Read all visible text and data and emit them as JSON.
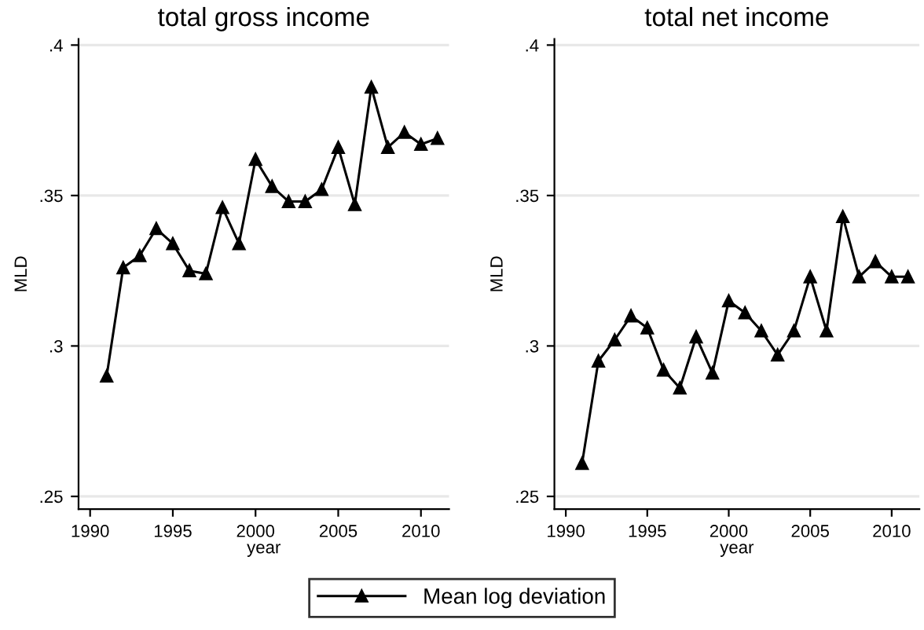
{
  "chart_data": [
    {
      "type": "line",
      "title": "total gross income",
      "xlabel": "year",
      "ylabel": "MLD",
      "x": [
        1991,
        1992,
        1993,
        1994,
        1995,
        1996,
        1997,
        1998,
        1999,
        2000,
        2001,
        2002,
        2003,
        2004,
        2005,
        2006,
        2007,
        2008,
        2009,
        2010,
        2011
      ],
      "series": [
        {
          "color": "#000000",
          "values": [
            0.29,
            0.326,
            0.33,
            0.339,
            0.334,
            0.325,
            0.324,
            0.346,
            0.334,
            0.362,
            0.353,
            0.348,
            0.348,
            0.352,
            0.366,
            0.347,
            0.386,
            0.366,
            0.371,
            0.367,
            0.369
          ]
        }
      ],
      "xlim": [
        1989.3,
        2011.7
      ],
      "ylim": [
        0.2458,
        0.402
      ],
      "xticks": [
        1990,
        1995,
        2000,
        2005,
        2010
      ],
      "yticks": [
        {
          "value": 0.25,
          "label": ".25"
        },
        {
          "value": 0.3,
          "label": ".3"
        },
        {
          "value": 0.35,
          "label": ".35"
        },
        {
          "value": 0.4,
          "label": ".4"
        }
      ],
      "grid": "y",
      "marker": "triangle",
      "line_style": "solid"
    },
    {
      "type": "line",
      "title": "total net income",
      "xlabel": "year",
      "ylabel": "MLD",
      "x": [
        1991,
        1992,
        1993,
        1994,
        1995,
        1996,
        1997,
        1998,
        1999,
        2000,
        2001,
        2002,
        2003,
        2004,
        2005,
        2006,
        2007,
        2008,
        2009,
        2010,
        2011
      ],
      "series": [
        {
          "name": "Mean log deviation",
          "color": "#000000",
          "values": [
            0.261,
            0.295,
            0.302,
            0.31,
            0.306,
            0.292,
            0.286,
            0.303,
            0.291,
            0.315,
            0.311,
            0.305,
            0.297,
            0.305,
            0.323,
            0.305,
            0.343,
            0.323,
            0.328,
            0.323,
            0.323
          ]
        }
      ],
      "xlim": [
        1989.3,
        2011.7
      ],
      "ylim": [
        0.2458,
        0.402
      ],
      "xticks": [
        1990,
        1995,
        2000,
        2005,
        2010
      ],
      "yticks": [
        {
          "value": 0.25,
          "label": ".25"
        },
        {
          "value": 0.3,
          "label": ".3"
        },
        {
          "value": 0.35,
          "label": ".35"
        },
        {
          "value": 0.4,
          "label": ".4"
        }
      ],
      "grid": "y",
      "marker": "triangle",
      "line_style": "solid",
      "legend": "bottom"
    }
  ]
}
